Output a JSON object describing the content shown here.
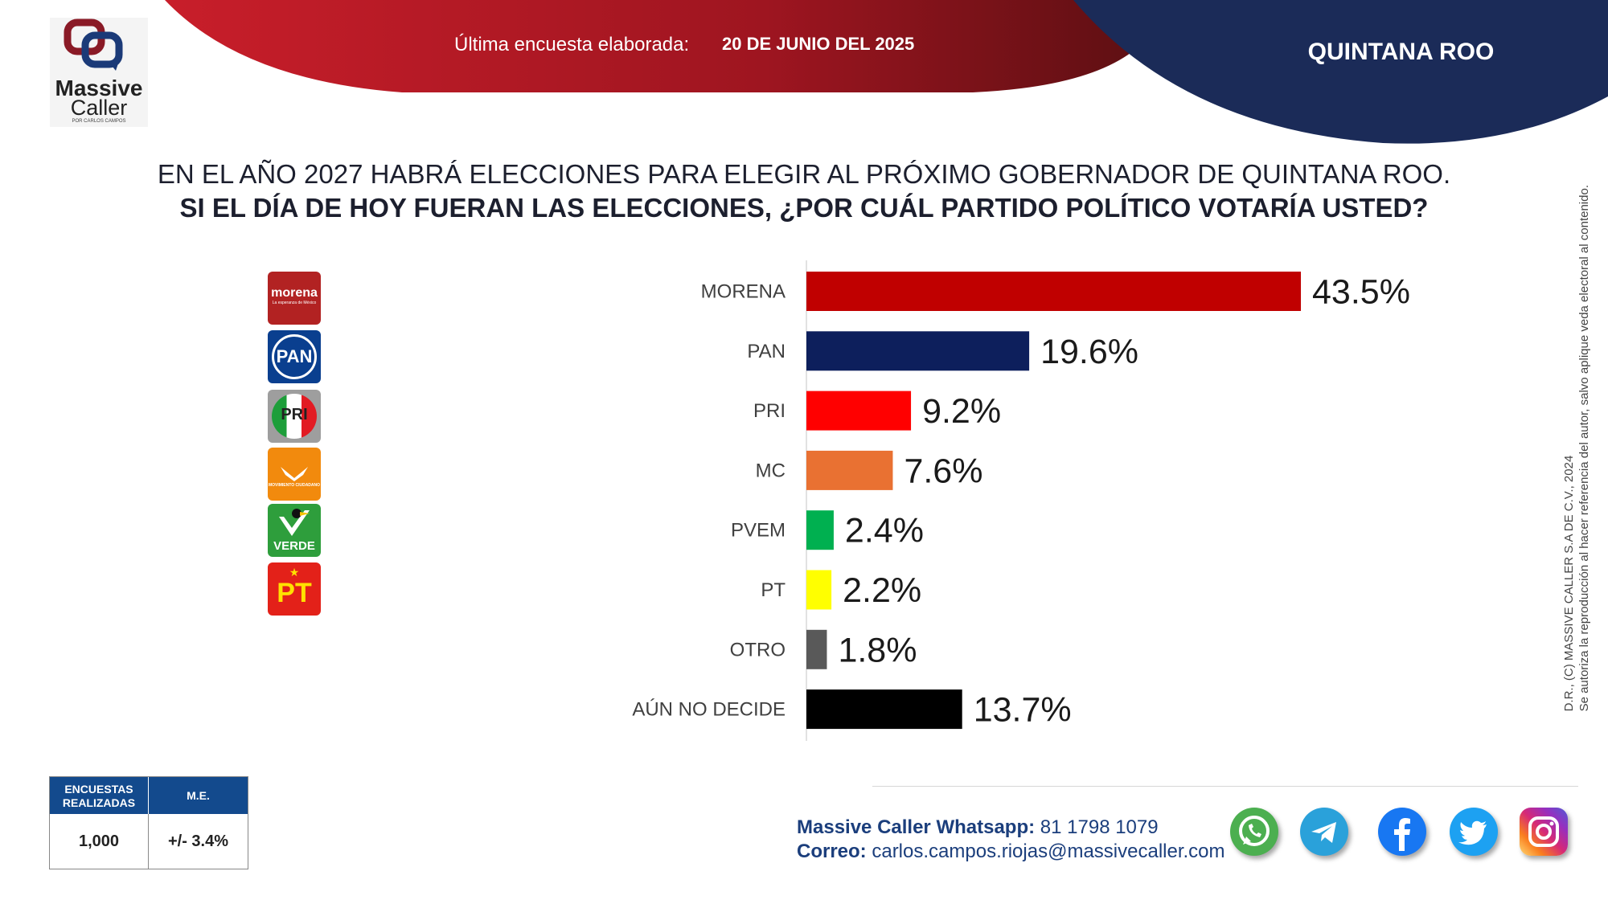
{
  "brand": {
    "line1": "Massive",
    "line2": "Caller",
    "tagline": "POR CARLOS CAMPOS"
  },
  "header": {
    "survey_label": "Última encuesta elaborada:",
    "survey_date": "20 DE JUNIO DEL 2025",
    "state": "QUINTANA ROO"
  },
  "question": {
    "line1": "EN EL AÑO 2027 HABRÁ ELECCIONES PARA ELEGIR AL PRÓXIMO GOBERNADOR DE QUINTANA ROO.",
    "line2": "SI EL DÍA DE HOY FUERAN LAS ELECCIONES, ¿POR CUÁL PARTIDO POLÍTICO VOTARÍA USTED?"
  },
  "party_logos": [
    {
      "name": "morena",
      "text": "morena",
      "subtext": "La esperanza de México",
      "color": "#b22222"
    },
    {
      "name": "pan",
      "text": "PAN",
      "color": "#0a3f8f"
    },
    {
      "name": "pri",
      "text": "PRI",
      "color": "#9e9e9e"
    },
    {
      "name": "mc",
      "text": "MOVIMIENTO CIUDADANO",
      "color": "#f28a0d"
    },
    {
      "name": "verde",
      "text": "VERDE",
      "color": "#2e9e3c"
    },
    {
      "name": "pt",
      "text": "PT",
      "color": "#e32119"
    }
  ],
  "chart_data": {
    "type": "bar",
    "orientation": "horizontal",
    "title": "SI EL DÍA DE HOY FUERAN LAS ELECCIONES, ¿POR CUÁL PARTIDO POLÍTICO VOTARÍA USTED?",
    "categories": [
      "MORENA",
      "PAN",
      "PRI",
      "MC",
      "PVEM",
      "PT",
      "OTRO",
      "AÚN NO DECIDE"
    ],
    "values": [
      43.5,
      19.6,
      9.2,
      7.6,
      2.4,
      2.2,
      1.8,
      13.7
    ],
    "value_labels": [
      "43.5%",
      "19.6%",
      "9.2%",
      "7.6%",
      "2.4%",
      "2.2%",
      "1.8%",
      "13.7%"
    ],
    "colors": [
      "#c00000",
      "#0d1f5c",
      "#ff0000",
      "#e97132",
      "#00b050",
      "#ffff00",
      "#595959",
      "#000000"
    ],
    "xlim": [
      0,
      60
    ],
    "unit": "%"
  },
  "sample": {
    "col1_header": "ENCUESTAS REALIZADAS",
    "col2_header": "M.E.",
    "surveys": "1,000",
    "margin": "+/- 3.4%"
  },
  "copyright": {
    "line1": "D.R., (C) MASSIVE CALLER S.A DE C.V., 2024",
    "line2": "Se autoriza la reproducción al hacer referencia del autor, salvo aplique veda electoral al contenido."
  },
  "contact": {
    "whatsapp_label": "Massive Caller Whatsapp:",
    "whatsapp_number": "81 1798 1079",
    "email_label": "Correo:",
    "email": "carlos.campos.riojas@massivecaller.com"
  },
  "social": [
    {
      "name": "whatsapp",
      "color": "#4caf50"
    },
    {
      "name": "telegram",
      "color": "#2aa1da"
    },
    {
      "name": "facebook",
      "color": "#1877f2"
    },
    {
      "name": "twitter",
      "color": "#1da1f2"
    },
    {
      "name": "instagram",
      "color": "#d62976"
    }
  ]
}
